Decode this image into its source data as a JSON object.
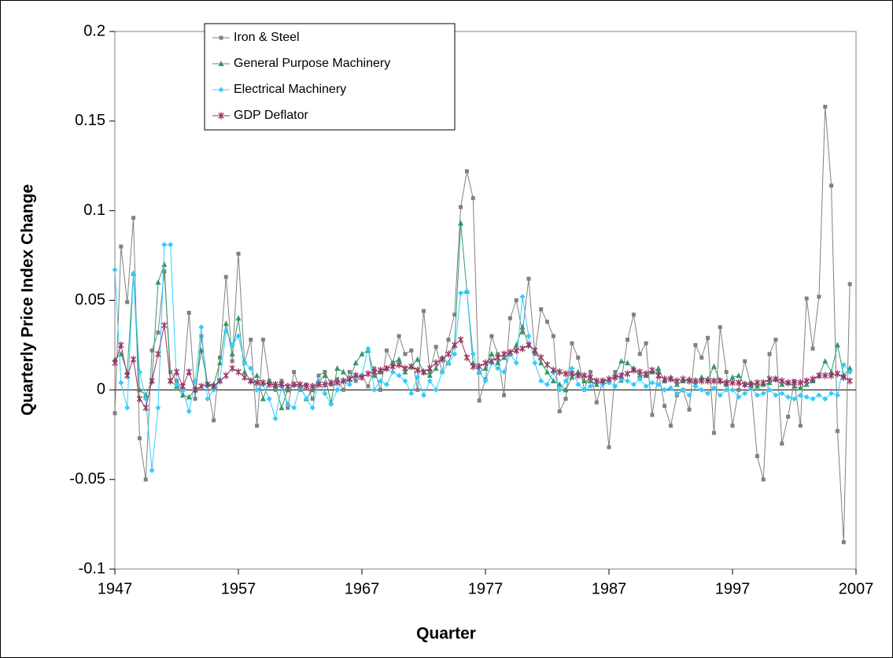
{
  "chart_data": {
    "type": "line",
    "x_label": "Quarter",
    "y_label": "Quarterly Price Index Change",
    "x": [
      1947,
      1947.5,
      1948,
      1948.5,
      1949,
      1949.5,
      1950,
      1950.5,
      1951,
      1951.5,
      1952,
      1952.5,
      1953,
      1953.5,
      1954,
      1954.5,
      1955,
      1955.5,
      1956,
      1956.5,
      1957,
      1957.5,
      1958,
      1958.5,
      1959,
      1959.5,
      1960,
      1960.5,
      1961,
      1961.5,
      1962,
      1962.5,
      1963,
      1963.5,
      1964,
      1964.5,
      1965,
      1965.5,
      1966,
      1966.5,
      1967,
      1967.5,
      1968,
      1968.5,
      1969,
      1969.5,
      1970,
      1970.5,
      1971,
      1971.5,
      1972,
      1972.5,
      1973,
      1973.5,
      1974,
      1974.5,
      1975,
      1975.5,
      1976,
      1976.5,
      1977,
      1977.5,
      1978,
      1978.5,
      1979,
      1979.5,
      1980,
      1980.5,
      1981,
      1981.5,
      1982,
      1982.5,
      1983,
      1983.5,
      1984,
      1984.5,
      1985,
      1985.5,
      1986,
      1986.5,
      1987,
      1987.5,
      1988,
      1988.5,
      1989,
      1989.5,
      1990,
      1990.5,
      1991,
      1991.5,
      1992,
      1992.5,
      1993,
      1993.5,
      1994,
      1994.5,
      1995,
      1995.5,
      1996,
      1996.5,
      1997,
      1997.5,
      1998,
      1998.5,
      1999,
      1999.5,
      2000,
      2000.5,
      2001,
      2001.5,
      2002,
      2002.5,
      2003,
      2003.5,
      2004,
      2004.5,
      2005,
      2005.5,
      2006,
      2006.5
    ],
    "series": [
      {
        "name": "Iron & Steel",
        "color": "#808080",
        "marker": "square",
        "values": [
          -0.013,
          0.08,
          0.049,
          0.096,
          -0.027,
          -0.05,
          0.022,
          0.032,
          0.066,
          0.01,
          0.005,
          0.0,
          0.043,
          -0.005,
          0.03,
          0.003,
          -0.017,
          0.018,
          0.063,
          0.016,
          0.076,
          0.015,
          0.028,
          -0.02,
          0.028,
          0.005,
          0.0,
          0.005,
          -0.01,
          0.01,
          0.0,
          0.003,
          -0.005,
          0.008,
          0.01,
          0.003,
          0.006,
          0.0,
          0.01,
          0.005,
          0.008,
          0.002,
          0.012,
          0.0,
          0.022,
          0.015,
          0.03,
          0.02,
          0.022,
          0.0,
          0.044,
          0.01,
          0.024,
          0.01,
          0.028,
          0.042,
          0.102,
          0.122,
          0.107,
          -0.006,
          0.006,
          0.03,
          0.02,
          -0.003,
          0.04,
          0.05,
          0.032,
          0.062,
          0.02,
          0.045,
          0.038,
          0.03,
          -0.012,
          -0.005,
          0.026,
          0.018,
          0.0,
          0.01,
          -0.007,
          0.005,
          -0.032,
          0.01,
          0.005,
          0.028,
          0.042,
          0.02,
          0.026,
          -0.014,
          0.01,
          -0.009,
          -0.02,
          -0.003,
          0.0,
          -0.011,
          0.025,
          0.018,
          0.029,
          -0.024,
          0.035,
          0.01,
          -0.02,
          0.0,
          0.016,
          0.002,
          -0.037,
          -0.05,
          0.02,
          0.028,
          -0.03,
          -0.015,
          0.005,
          -0.02,
          0.051,
          0.023,
          0.052,
          0.158,
          0.114,
          -0.023,
          -0.085,
          0.059
        ]
      },
      {
        "name": "General Purpose Machinery",
        "color": "#339966",
        "marker": "triangle",
        "values": [
          0.017,
          0.02,
          0.01,
          0.065,
          0.0,
          -0.003,
          0.005,
          0.06,
          0.07,
          0.005,
          0.002,
          -0.003,
          -0.004,
          0.0,
          0.022,
          0.003,
          0.003,
          0.015,
          0.037,
          0.02,
          0.04,
          0.01,
          0.005,
          0.008,
          -0.005,
          0.005,
          0.002,
          -0.01,
          0.0,
          0.003,
          0.002,
          -0.005,
          0.0,
          0.005,
          0.008,
          -0.007,
          0.012,
          0.01,
          0.006,
          0.015,
          0.02,
          0.022,
          0.008,
          0.01,
          0.012,
          0.015,
          0.017,
          0.01,
          0.013,
          0.017,
          0.01,
          0.008,
          0.012,
          0.018,
          0.015,
          0.025,
          0.093,
          0.055,
          0.015,
          0.01,
          0.012,
          0.02,
          0.015,
          0.018,
          0.02,
          0.025,
          0.035,
          0.025,
          0.022,
          0.015,
          0.01,
          0.005,
          0.003,
          0.0,
          0.007,
          0.01,
          0.005,
          0.005,
          0.003,
          0.005,
          0.005,
          0.008,
          0.016,
          0.015,
          0.012,
          0.008,
          0.008,
          0.01,
          0.012,
          0.005,
          0.007,
          0.003,
          0.005,
          0.006,
          0.003,
          0.007,
          0.006,
          0.013,
          0.005,
          0.003,
          0.007,
          0.008,
          0.003,
          0.004,
          0.002,
          0.003,
          0.004,
          0.006,
          0.003,
          0.004,
          0.002,
          0.001,
          0.003,
          0.005,
          0.008,
          0.016,
          0.01,
          0.025,
          0.008,
          0.012
        ]
      },
      {
        "name": "Electrical Machinery",
        "color": "#33ccff",
        "marker": "diamond",
        "values": [
          0.067,
          0.004,
          -0.01,
          0.065,
          0.01,
          -0.005,
          -0.045,
          -0.01,
          0.081,
          0.081,
          0.003,
          0.0,
          -0.012,
          0.005,
          0.035,
          -0.005,
          0.0,
          0.005,
          0.033,
          0.025,
          0.03,
          0.015,
          0.012,
          0.0,
          0.003,
          -0.005,
          -0.016,
          0.002,
          -0.008,
          -0.01,
          0.002,
          -0.005,
          -0.01,
          0.005,
          -0.002,
          -0.008,
          0.0,
          0.005,
          0.003,
          0.008,
          0.008,
          0.023,
          0.0,
          0.005,
          0.003,
          0.01,
          0.008,
          0.005,
          -0.002,
          0.007,
          -0.003,
          0.005,
          0.0,
          0.01,
          0.015,
          0.02,
          0.054,
          0.055,
          0.02,
          0.01,
          0.005,
          0.015,
          0.012,
          0.01,
          0.02,
          0.015,
          0.052,
          0.03,
          0.015,
          0.005,
          0.003,
          0.01,
          0.0,
          0.005,
          0.012,
          0.003,
          0.0,
          0.002,
          0.005,
          0.003,
          0.004,
          0.002,
          0.006,
          0.005,
          0.003,
          0.006,
          0.002,
          0.004,
          0.003,
          0.0,
          0.001,
          -0.002,
          0.0,
          -0.003,
          0.002,
          0.0,
          -0.002,
          0.001,
          -0.003,
          0.0,
          0.0,
          -0.004,
          -0.002,
          0.001,
          -0.003,
          -0.002,
          0.0,
          -0.003,
          -0.002,
          -0.004,
          -0.005,
          -0.003,
          -0.004,
          -0.005,
          -0.003,
          -0.005,
          -0.002,
          -0.003,
          0.014,
          0.01
        ]
      },
      {
        "name": "GDP Deflator",
        "color": "#993366",
        "marker": "asterisk",
        "values": [
          0.015,
          0.025,
          0.008,
          0.017,
          -0.005,
          -0.01,
          0.005,
          0.02,
          0.036,
          0.005,
          0.01,
          0.002,
          0.01,
          0.0,
          0.002,
          0.003,
          0.002,
          0.005,
          0.008,
          0.012,
          0.01,
          0.007,
          0.005,
          0.004,
          0.004,
          0.003,
          0.003,
          0.003,
          0.002,
          0.003,
          0.003,
          0.002,
          0.002,
          0.003,
          0.003,
          0.004,
          0.004,
          0.005,
          0.006,
          0.008,
          0.007,
          0.009,
          0.01,
          0.011,
          0.012,
          0.013,
          0.014,
          0.012,
          0.013,
          0.011,
          0.01,
          0.012,
          0.015,
          0.017,
          0.02,
          0.025,
          0.028,
          0.018,
          0.013,
          0.013,
          0.015,
          0.016,
          0.018,
          0.02,
          0.021,
          0.022,
          0.023,
          0.025,
          0.022,
          0.018,
          0.014,
          0.011,
          0.01,
          0.009,
          0.009,
          0.008,
          0.008,
          0.007,
          0.005,
          0.005,
          0.006,
          0.007,
          0.008,
          0.009,
          0.011,
          0.01,
          0.009,
          0.011,
          0.008,
          0.006,
          0.006,
          0.005,
          0.006,
          0.005,
          0.005,
          0.005,
          0.005,
          0.005,
          0.005,
          0.004,
          0.004,
          0.004,
          0.003,
          0.003,
          0.004,
          0.004,
          0.006,
          0.006,
          0.005,
          0.004,
          0.004,
          0.004,
          0.005,
          0.006,
          0.008,
          0.008,
          0.008,
          0.009,
          0.007,
          0.005
        ]
      }
    ],
    "xlim": [
      1947,
      2007
    ],
    "xticks": [
      1947,
      1957,
      1967,
      1977,
      1987,
      1997,
      2007
    ],
    "ylim": [
      -0.1,
      0.2
    ],
    "yticks": [
      0.2,
      0.15,
      0.1,
      0.05,
      0,
      -0.05,
      -0.1
    ],
    "grid": false,
    "legend": "upper left"
  }
}
